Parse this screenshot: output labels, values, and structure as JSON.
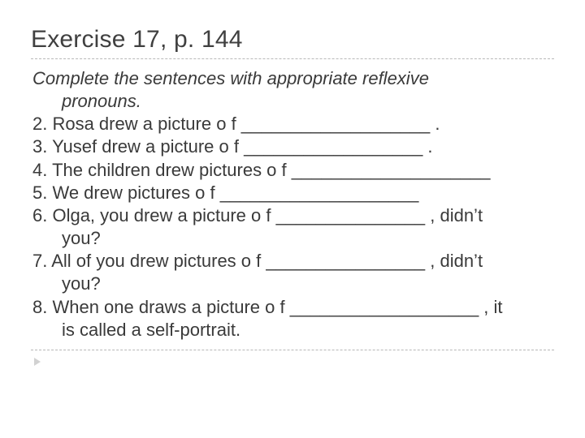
{
  "title": "Exercise 17, p. 144",
  "instruction_line1": "Complete the sentences with appropriate reflexive",
  "instruction_line2": "pronouns.",
  "items": {
    "i2": "2. Rosa drew a picture o f ___________________ .",
    "i3": "3. Yusef drew a picture o f __________________ .",
    "i4": "4. The children drew pictures o f ____________________",
    "i5": "5. We drew pictures o f ____________________",
    "i6a": "6. Olga, you drew a picture o f _______________ , didn’t",
    "i6b": "you?",
    "i7a": "7. All of you drew pictures o f ________________ , didn’t",
    "i7b": "you?",
    "i8a": "8. When one draws a picture o f ___________________ , it",
    "i8b": "is called a self-portrait."
  },
  "colors": {
    "text": "#3a3a3a",
    "title": "#404040",
    "divider": "#b8b8b8",
    "bullet": "#d2d2d2",
    "background": "#ffffff"
  },
  "typography": {
    "title_fontsize": 30,
    "body_fontsize": 22,
    "font_family": "Arial"
  }
}
